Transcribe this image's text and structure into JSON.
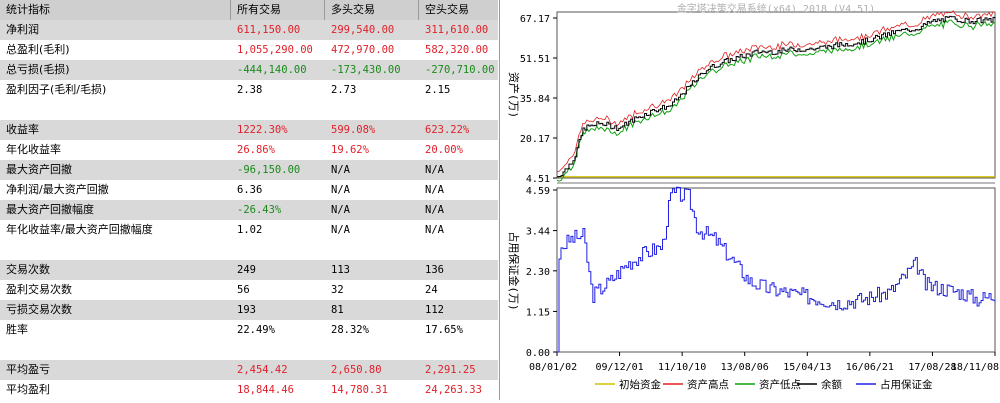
{
  "table": {
    "header": [
      "统计指标",
      "所有交易",
      "多头交易",
      "空头交易"
    ],
    "rows": [
      {
        "label": "净利润",
        "values": [
          "611,150.00",
          "299,540.00",
          "311,610.00"
        ],
        "color": "red",
        "shade": true
      },
      {
        "label": "总盈利(毛利)",
        "values": [
          "1,055,290.00",
          "472,970.00",
          "582,320.00"
        ],
        "color": "red",
        "shade": false
      },
      {
        "label": "总亏损(毛损)",
        "values": [
          "-444,140.00",
          "-173,430.00",
          "-270,710.00"
        ],
        "color": "green",
        "shade": true
      },
      {
        "label": "盈利因子(毛利/毛损)",
        "values": [
          "2.38",
          "2.73",
          "2.15"
        ],
        "color": "black",
        "shade": false
      },
      {
        "label": "",
        "values": [
          "",
          "",
          ""
        ],
        "color": "black",
        "shade": false
      },
      {
        "label": "收益率",
        "values": [
          "1222.30%",
          "599.08%",
          "623.22%"
        ],
        "color": "red",
        "shade": true
      },
      {
        "label": "年化收益率",
        "values": [
          "26.86%",
          "19.62%",
          "20.00%"
        ],
        "color": "red",
        "shade": false
      },
      {
        "label": "最大资产回撤",
        "values": [
          "-96,150.00",
          "N/A",
          "N/A"
        ],
        "color": "green",
        "shade": true
      },
      {
        "label": "净利润/最大资产回撤",
        "values": [
          "6.36",
          "N/A",
          "N/A"
        ],
        "color": "black",
        "shade": false
      },
      {
        "label": "最大资产回撤幅度",
        "values": [
          "-26.43%",
          "N/A",
          "N/A"
        ],
        "color": "green",
        "shade": true
      },
      {
        "label": "年化收益率/最大资产回撤幅度",
        "values": [
          "1.02",
          "N/A",
          "N/A"
        ],
        "color": "black",
        "shade": false
      },
      {
        "label": "",
        "values": [
          "",
          "",
          ""
        ],
        "color": "black",
        "shade": false
      },
      {
        "label": "交易次数",
        "values": [
          "249",
          "113",
          "136"
        ],
        "color": "black",
        "shade": true
      },
      {
        "label": "盈利交易次数",
        "values": [
          "56",
          "32",
          "24"
        ],
        "color": "black",
        "shade": false
      },
      {
        "label": "亏损交易次数",
        "values": [
          "193",
          "81",
          "112"
        ],
        "color": "black",
        "shade": true
      },
      {
        "label": "胜率",
        "values": [
          "22.49%",
          "28.32%",
          "17.65%"
        ],
        "color": "black",
        "shade": false
      },
      {
        "label": "",
        "values": [
          "",
          "",
          ""
        ],
        "color": "black",
        "shade": false
      },
      {
        "label": "平均盈亏",
        "values": [
          "2,454.42",
          "2,650.80",
          "2,291.25"
        ],
        "color": "red",
        "shade": true
      },
      {
        "label": "平均盈利",
        "values": [
          "18,844.46",
          "14,780.31",
          "24,263.33"
        ],
        "color": "red",
        "shade": false
      }
    ]
  },
  "chart": {
    "title": "金字塔决策交易系统(x64) 2018 (V4.51)",
    "top_ylabel": "资产(万)",
    "bottom_ylabel": "占用保证金(万)",
    "top_yticks": [
      "67.17",
      "51.51",
      "35.84",
      "20.17",
      "4.51"
    ],
    "bottom_yticks": [
      "4.59",
      "3.44",
      "2.30",
      "1.15",
      "0.00"
    ],
    "xticks": [
      "08/01/02",
      "09/12/01",
      "11/10/10",
      "13/08/06",
      "15/04/13",
      "16/06/21",
      "17/08/28",
      "18/11/08"
    ],
    "legend": [
      {
        "name": "初始资金",
        "color": "#d4c200"
      },
      {
        "name": "资产高点",
        "color": "#e02020"
      },
      {
        "name": "资产低点",
        "color": "#10a010"
      },
      {
        "name": "余额",
        "color": "#000000"
      },
      {
        "name": "占用保证金",
        "color": "#2020e0"
      }
    ]
  },
  "chart_data": {
    "type": "line",
    "panels": [
      {
        "ylabel": "资产(万)",
        "yticks": [
          4.51,
          20.17,
          35.84,
          51.51,
          67.17
        ],
        "series": [
          {
            "name": "初始资金",
            "values": [
              [
                0,
                5
              ],
              [
                1,
                5
              ]
            ]
          },
          {
            "name": "余额",
            "values": [
              [
                0,
                5
              ],
              [
                0.02,
                8
              ],
              [
                0.04,
                13
              ],
              [
                0.06,
                24
              ],
              [
                0.1,
                26
              ],
              [
                0.14,
                24
              ],
              [
                0.18,
                28
              ],
              [
                0.22,
                31
              ],
              [
                0.26,
                33
              ],
              [
                0.3,
                40
              ],
              [
                0.34,
                47
              ],
              [
                0.38,
                50
              ],
              [
                0.42,
                52
              ],
              [
                0.46,
                54
              ],
              [
                0.5,
                54
              ],
              [
                0.54,
                55
              ],
              [
                0.58,
                55
              ],
              [
                0.62,
                56
              ],
              [
                0.66,
                57
              ],
              [
                0.7,
                58
              ],
              [
                0.74,
                60
              ],
              [
                0.78,
                62
              ],
              [
                0.82,
                63
              ],
              [
                0.86,
                66
              ],
              [
                0.9,
                67
              ],
              [
                0.94,
                66
              ],
              [
                1,
                66.5
              ]
            ]
          }
        ]
      },
      {
        "ylabel": "占用保证金(万)",
        "yticks": [
          0.0,
          1.15,
          2.3,
          3.44,
          4.59
        ],
        "series": [
          {
            "name": "占用保证金",
            "values": [
              [
                0,
                0
              ],
              [
                0.005,
                2.9
              ],
              [
                0.03,
                3.2
              ],
              [
                0.06,
                3.3
              ],
              [
                0.08,
                1.6
              ],
              [
                0.12,
                2.0
              ],
              [
                0.16,
                2.5
              ],
              [
                0.2,
                2.8
              ],
              [
                0.24,
                3.0
              ],
              [
                0.26,
                4.5
              ],
              [
                0.3,
                4.4
              ],
              [
                0.32,
                3.5
              ],
              [
                0.36,
                3.2
              ],
              [
                0.4,
                2.6
              ],
              [
                0.44,
                2.0
              ],
              [
                0.48,
                1.8
              ],
              [
                0.52,
                1.7
              ],
              [
                0.56,
                1.6
              ],
              [
                0.6,
                1.5
              ],
              [
                0.64,
                1.4
              ],
              [
                0.7,
                1.5
              ],
              [
                0.76,
                1.7
              ],
              [
                0.82,
                2.5
              ],
              [
                0.84,
                1.9
              ],
              [
                0.88,
                1.8
              ],
              [
                0.92,
                1.7
              ],
              [
                0.96,
                1.5
              ],
              [
                1,
                1.6
              ]
            ]
          }
        ]
      }
    ]
  }
}
